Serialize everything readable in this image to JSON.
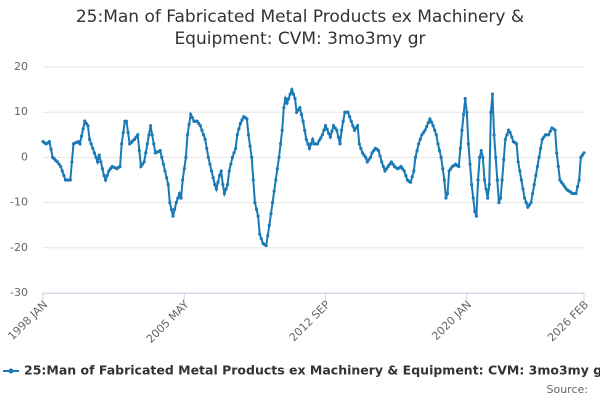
{
  "chart_data": {
    "type": "line",
    "title": "25:Man of Fabricated Metal Products ex Machinery & Equipment: CVM: 3mo3my gr",
    "source": "Source:",
    "categories": [
      "1998 JAN",
      null,
      null,
      null,
      null,
      null,
      null,
      null,
      null,
      null,
      null,
      null,
      null,
      null,
      null,
      null,
      null,
      null,
      null,
      null,
      null,
      null,
      null,
      null,
      null,
      null,
      null,
      null,
      null,
      null,
      null,
      null,
      null,
      null,
      null,
      null,
      null,
      null,
      null,
      null,
      null,
      null,
      null,
      null,
      null,
      null,
      null,
      null,
      null,
      null,
      null,
      null,
      null,
      null,
      null,
      null,
      null,
      null,
      null,
      null,
      null,
      null,
      null,
      null,
      null,
      null,
      null,
      null,
      null,
      null,
      null,
      null,
      null,
      null,
      null,
      null,
      null,
      null,
      null,
      null,
      null,
      null,
      null,
      null,
      null,
      null,
      null,
      null,
      "2005 MAY",
      null,
      null,
      null,
      null,
      null,
      null,
      null,
      null,
      null,
      null,
      null,
      null,
      null,
      null,
      null,
      null,
      null,
      null,
      null,
      null,
      null,
      null,
      null,
      null,
      null,
      null,
      null,
      null,
      null,
      null,
      null,
      null,
      null,
      null,
      null,
      null,
      null,
      null,
      null,
      null,
      null,
      null,
      null,
      null,
      null,
      null,
      null,
      null,
      null,
      null,
      null,
      null,
      null,
      null,
      null,
      null,
      null,
      null,
      null,
      null,
      null,
      null,
      null,
      null,
      null,
      null,
      null,
      null,
      null,
      null,
      null,
      null,
      null,
      null,
      null,
      null,
      null,
      null,
      null,
      null,
      null,
      null,
      null,
      null,
      null,
      null,
      null,
      "2012 SEP",
      null,
      null,
      null,
      null,
      null,
      null,
      null,
      null,
      null,
      null,
      null,
      null,
      null,
      null,
      null,
      null,
      null,
      null,
      null,
      null,
      null,
      null,
      null,
      null,
      null,
      null,
      null,
      null,
      null,
      null,
      null,
      null,
      null,
      null,
      null,
      null,
      null,
      null,
      null,
      null,
      null,
      null,
      null,
      null,
      null,
      null,
      null,
      null,
      null,
      null,
      null,
      null,
      null,
      null,
      null,
      null,
      null,
      null,
      null,
      null,
      null,
      null,
      null,
      null,
      null,
      null,
      null,
      null,
      null,
      null,
      null,
      null,
      null,
      null,
      null,
      null,
      null,
      null,
      null,
      null,
      null,
      null,
      null,
      null,
      null,
      null,
      null,
      "2020 JAN",
      null,
      null,
      null,
      null,
      null,
      null,
      null,
      null,
      null,
      null,
      null,
      null,
      null,
      null,
      null,
      null,
      null,
      null,
      null,
      null,
      null,
      null,
      null,
      null,
      null,
      null,
      null,
      null,
      null,
      null,
      null,
      null,
      null,
      null,
      null,
      null,
      null,
      null,
      null,
      null,
      null,
      null,
      null,
      null,
      null,
      null,
      null,
      null,
      null,
      null,
      null,
      null,
      null,
      null,
      null,
      null,
      null,
      null,
      null,
      null,
      null,
      null,
      null,
      null,
      null,
      null,
      null,
      null,
      null,
      null,
      null,
      null,
      "2026 FEB"
    ],
    "series": [
      {
        "name": "25:Man of Fabricated Metal Products ex Machinery & Equipment: CVM: 3mo3my gr",
        "color": "#1a7ab5",
        "values": [
          3.5,
          3.2,
          3,
          3.2,
          3.5,
          1.8,
          0,
          -0.3,
          -0.7,
          -1,
          -1.5,
          -2,
          -3,
          -4,
          -5,
          -5,
          -5,
          -5,
          -1,
          3,
          3.2,
          3.3,
          3.5,
          3,
          4.7,
          6.3,
          8,
          7.5,
          7,
          4,
          3,
          2,
          1,
          0,
          -1,
          0.5,
          -1,
          -2.5,
          -4,
          -5,
          -4,
          -3,
          -2.5,
          -2,
          -2.2,
          -2.3,
          -2.5,
          -2.2,
          -2,
          3,
          5.5,
          8,
          8,
          5.5,
          3,
          3.3,
          3.7,
          4,
          4.5,
          5,
          1.5,
          -2,
          -1.5,
          -1,
          1,
          3,
          5,
          7,
          5,
          3,
          1,
          1.2,
          1.3,
          1.5,
          0,
          -1.5,
          -3,
          -4.5,
          -6,
          -10,
          -11.5,
          -13,
          -11.5,
          -10,
          -9,
          -8,
          -9,
          -5,
          -2.5,
          0,
          5,
          7.3,
          9.5,
          8.8,
          8,
          8,
          8,
          7.5,
          7,
          6,
          5,
          4,
          2,
          0,
          -1.5,
          -3,
          -4.5,
          -6,
          -7,
          -5.5,
          -4,
          -3,
          -6,
          -8,
          -7,
          -6,
          -3,
          -1.5,
          0,
          1,
          2,
          5,
          6.3,
          7.5,
          8.3,
          9,
          8.8,
          8.5,
          5,
          2.5,
          0,
          -5,
          -10,
          -11.5,
          -13,
          -17,
          -18,
          -19,
          -19.3,
          -19.5,
          -17.3,
          -15,
          -12.5,
          -10,
          -7.5,
          -5,
          -2.5,
          0,
          3,
          6,
          11,
          13,
          12,
          13,
          14,
          15,
          14,
          13,
          10,
          10.5,
          11,
          9.5,
          8,
          6,
          4,
          3,
          2,
          3,
          4,
          3,
          3,
          3,
          3.7,
          4.3,
          5,
          6,
          7,
          6.2,
          5.3,
          4.5,
          5.8,
          7,
          6.5,
          6,
          4.5,
          3,
          6,
          8,
          10,
          10,
          10,
          9,
          8,
          7,
          6,
          6.5,
          7,
          3,
          2,
          1,
          0.5,
          0,
          -1,
          -0.5,
          0,
          1,
          1.5,
          2,
          1.8,
          1.5,
          0.3,
          -1,
          -2,
          -3,
          -2.5,
          -2,
          -1.5,
          -1,
          -1.5,
          -2,
          -2.3,
          -2.5,
          -2.3,
          -2,
          -2.5,
          -3,
          -4,
          -5,
          -5.3,
          -5.5,
          -4.3,
          -3,
          0,
          1.5,
          3,
          4,
          5,
          5.5,
          6,
          6.8,
          7.7,
          8.5,
          7.8,
          7,
          6,
          5,
          3,
          1.5,
          0,
          -2.5,
          -5,
          -9,
          -8,
          -3,
          -2.5,
          -2,
          -1.8,
          -1.5,
          -1.8,
          -2,
          2,
          6,
          9.5,
          13,
          10,
          3,
          -1.5,
          -6,
          -9,
          -12,
          -13,
          -5,
          0,
          1.5,
          0,
          -5,
          -7,
          -9,
          -6,
          10,
          14,
          5,
          0,
          -5,
          -10,
          -9,
          -5,
          -0.5,
          4,
          5,
          6,
          5.5,
          4.5,
          3.5,
          3.3,
          3,
          -1,
          -3,
          -5,
          -7,
          -9,
          -10,
          -11,
          -10.5,
          -10,
          -8,
          -6,
          -4,
          -2,
          0,
          2,
          4,
          4.5,
          5,
          5,
          5,
          5.8,
          6.5,
          6.3,
          6,
          1,
          -2,
          -5,
          -5.5,
          -6,
          -6.5,
          -7,
          -7.3,
          -7.5,
          -7.8,
          -8,
          -8,
          -8,
          -6.5,
          -5,
          0,
          0.5,
          1
        ]
      }
    ],
    "ylim": [
      -30,
      20
    ],
    "yticks": [
      -30,
      -20,
      -10,
      0,
      10,
      20
    ],
    "grid": true
  }
}
